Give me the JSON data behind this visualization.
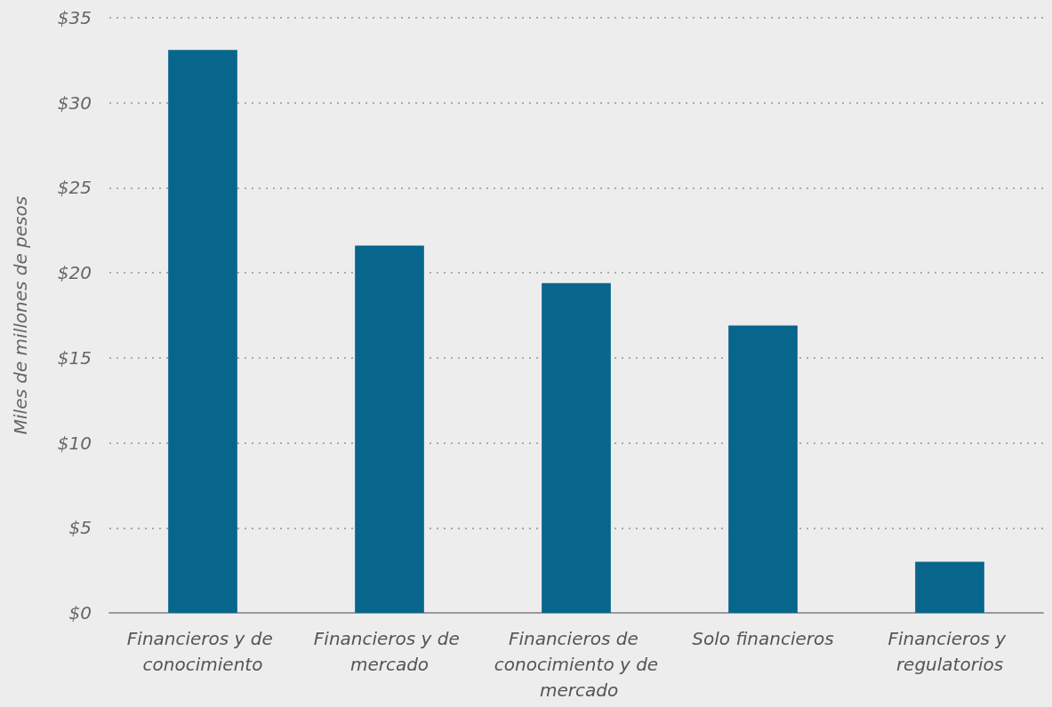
{
  "chart_data": {
    "type": "bar",
    "ylabel": "Miles de millones de pesos",
    "categories": [
      "Financieros y de conocimiento",
      "Financieros y de mercado",
      "Financieros de conocimiento y de mercado",
      "Solo financieros",
      "Financieros y regulatorios"
    ],
    "values": [
      33.1,
      21.6,
      19.4,
      16.9,
      3.0
    ],
    "color": "#08668c",
    "ylim": [
      0,
      35
    ],
    "yticks": [
      {
        "value": 0,
        "label": "$0"
      },
      {
        "value": 5,
        "label": "$5"
      },
      {
        "value": 10,
        "label": "$10"
      },
      {
        "value": 15,
        "label": "$15"
      },
      {
        "value": 20,
        "label": "$20"
      },
      {
        "value": 25,
        "label": "$25"
      },
      {
        "value": 30,
        "label": "$30"
      },
      {
        "value": 35,
        "label": "$35"
      }
    ],
    "grid": "y"
  }
}
